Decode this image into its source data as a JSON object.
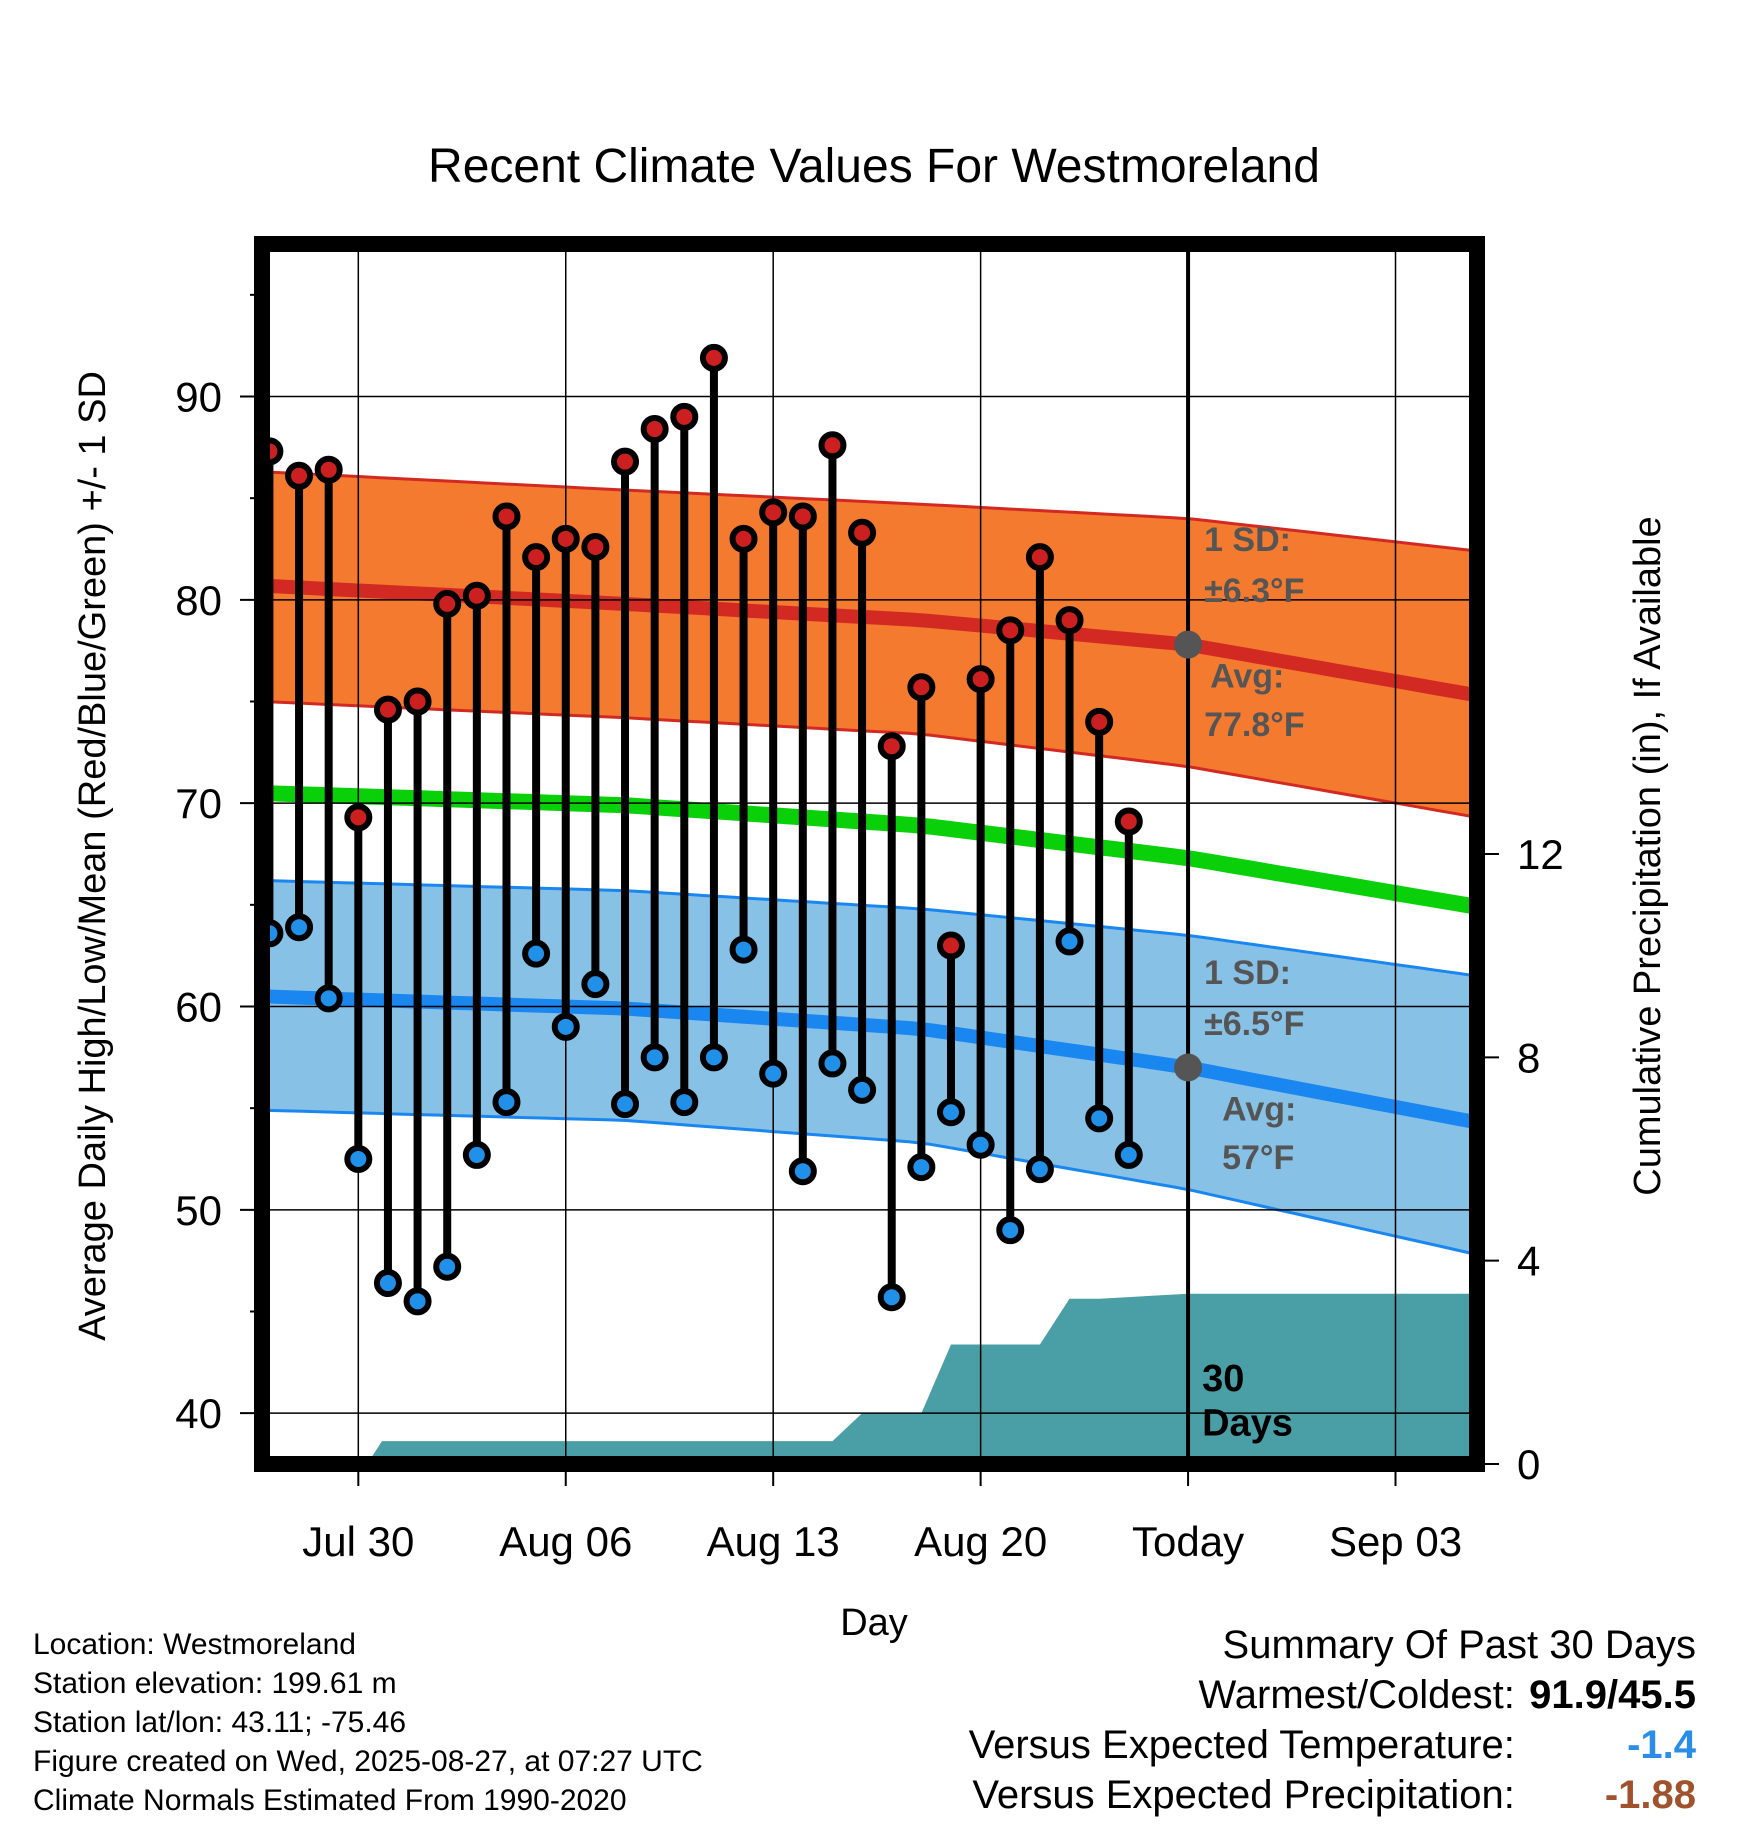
{
  "chart_data": {
    "type": "line",
    "title": "Recent Climate Values For Westmoreland",
    "xlabel": "Day",
    "ylabel": "Average Daily High/Low/Mean (Red/Blue/Green) +/- 1 SD",
    "y2label": "Cumulative Precipitation (in), If Available",
    "x_ticks": [
      {
        "day": 31,
        "label": "Jul 30"
      },
      {
        "day": 38,
        "label": "Aug 06"
      },
      {
        "day": 45,
        "label": "Aug 13"
      },
      {
        "day": 52,
        "label": "Aug 20"
      },
      {
        "day": 59,
        "label": "Today"
      },
      {
        "day": 66,
        "label": "Sep 03"
      }
    ],
    "xlim": [
      27.75,
      68.75
    ],
    "ylim": [
      37.5,
      97.5
    ],
    "y_ticks": [
      40,
      50,
      60,
      70,
      80,
      90
    ],
    "y2lim": [
      0,
      24
    ],
    "y2_ticks": [
      0,
      4,
      8,
      12
    ],
    "today_day": 59,
    "grid": true,
    "daily_high": {
      "days": [
        28,
        29,
        30,
        31,
        32,
        33,
        34,
        35,
        36,
        37,
        38,
        39,
        40,
        41,
        42,
        43,
        44,
        45,
        46,
        47,
        48,
        49,
        50,
        51,
        52,
        53,
        54,
        55,
        56,
        57,
        58
      ],
      "values": [
        87.3,
        86.1,
        86.4,
        69.3,
        74.6,
        75.0,
        79.8,
        80.2,
        84.1,
        82.1,
        83.0,
        82.6,
        86.8,
        88.4,
        89.0,
        91.9,
        83.0,
        84.3,
        84.1,
        87.6,
        83.3,
        72.8,
        75.7,
        63.0,
        76.1,
        78.5,
        82.1,
        79.0,
        74.0,
        69.1,
        null
      ]
    },
    "daily_low": {
      "days": [
        28,
        29,
        30,
        31,
        32,
        33,
        34,
        35,
        36,
        37,
        38,
        39,
        40,
        41,
        42,
        43,
        44,
        45,
        46,
        47,
        48,
        49,
        50,
        51,
        52,
        53,
        54,
        55,
        56,
        57,
        58
      ],
      "values": [
        63.6,
        63.9,
        60.4,
        52.5,
        46.4,
        45.5,
        47.2,
        52.7,
        55.3,
        62.6,
        59.0,
        61.1,
        55.2,
        57.5,
        55.3,
        57.5,
        62.8,
        56.7,
        51.9,
        57.2,
        55.9,
        45.7,
        52.1,
        54.8,
        53.2,
        49.0,
        52.0,
        63.2,
        54.5,
        52.7,
        null
      ]
    },
    "normal_high": {
      "avg_days": [
        27.75,
        40,
        50,
        59,
        68.75
      ],
      "avg_values": [
        80.7,
        79.8,
        79.0,
        77.8,
        75.3
      ],
      "upper_values": [
        86.3,
        85.4,
        84.7,
        84.0,
        82.4
      ],
      "lower_values": [
        75.0,
        74.2,
        73.4,
        71.8,
        69.3
      ]
    },
    "normal_mean": {
      "days": [
        27.75,
        40,
        50,
        59,
        68.75
      ],
      "values": [
        70.5,
        69.9,
        68.9,
        67.3,
        64.9
      ]
    },
    "normal_low": {
      "avg_days": [
        27.75,
        40,
        50,
        59,
        68.75
      ],
      "avg_values": [
        60.5,
        59.9,
        58.9,
        57.0,
        54.3
      ],
      "upper_values": [
        66.2,
        65.7,
        64.8,
        63.5,
        61.5
      ],
      "lower_values": [
        54.9,
        54.4,
        53.3,
        51.0,
        47.8
      ]
    },
    "precipitation": {
      "days": [
        27.75,
        31.3,
        31.8,
        47,
        48,
        50,
        51,
        54,
        55,
        56,
        59,
        68.75
      ],
      "values": [
        0,
        0,
        0.45,
        0.45,
        1.0,
        1.0,
        2.35,
        2.35,
        3.25,
        3.25,
        3.35,
        3.35
      ]
    },
    "annotations": {
      "high_sd_label": "1 SD:",
      "high_sd_value": "±6.3°F",
      "high_avg_label": "Avg:",
      "high_avg_value": "77.8°F",
      "low_sd_label": "1 SD:",
      "low_sd_value": "±6.5°F",
      "low_avg_label": "Avg:",
      "low_avg_value": "57°F",
      "window_number": "30",
      "window_unit": "Days"
    },
    "colors": {
      "high_band": "#f47a30",
      "high_line": "#d22a22",
      "low_band": "#88c1e6",
      "low_line": "#1a87f0",
      "mean_line": "#0ad00a",
      "precip": "#4a9ea6",
      "high_dot": "#cc2020",
      "low_dot": "#2090e8",
      "avg_dot": "#555555"
    }
  },
  "footer": {
    "location": "Location: Westmoreland",
    "elevation": "Station elevation: 199.61 m",
    "latlon": "Station lat/lon: 43.11; -75.46",
    "created": "Figure created on Wed, 2025-08-27, at 07:27 UTC",
    "normals": "Climate Normals Estimated From 1990-2020"
  },
  "summary": {
    "heading": "Summary Of Past 30 Days",
    "warmest_label": "Warmest/Coldest:",
    "warmest_value": "91.9/45.5",
    "temp_label": "Versus Expected Temperature:",
    "temp_value": "-1.4",
    "temp_color": "#2a8ee8",
    "precip_label": "Versus Expected Precipitation:",
    "precip_value": "-1.88",
    "precip_color": "#a0522d"
  }
}
